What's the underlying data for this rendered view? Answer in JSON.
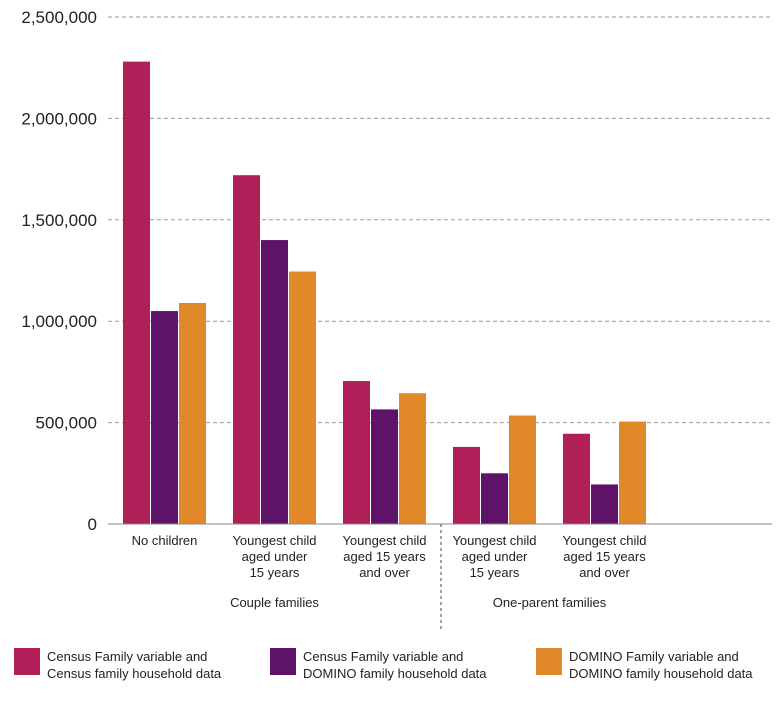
{
  "chart_data": {
    "type": "bar",
    "categories": [
      [
        "No children"
      ],
      [
        "Youngest child",
        "aged under",
        "15 years"
      ],
      [
        "Youngest child",
        "aged 15 years",
        "and over"
      ],
      [
        "Youngest child",
        "aged under",
        "15 years"
      ],
      [
        "Youngest child",
        "aged 15 years",
        "and over"
      ]
    ],
    "groups": [
      {
        "label": "Couple families",
        "categories": [
          0,
          1,
          2
        ]
      },
      {
        "label": "One-parent families",
        "categories": [
          3,
          4
        ]
      }
    ],
    "series": [
      {
        "name": [
          "Census Family variable and",
          "Census family household data"
        ],
        "color": "#b01f58",
        "values": [
          2280000,
          1720000,
          705000,
          380000,
          445000
        ]
      },
      {
        "name": [
          "Census Family variable and",
          "DOMINO family household data"
        ],
        "color": "#5e1268",
        "values": [
          1050000,
          1400000,
          565000,
          250000,
          195000
        ]
      },
      {
        "name": [
          "DOMINO Family variable and",
          "DOMINO family household data"
        ],
        "color": "#e0882a",
        "values": [
          1090000,
          1245000,
          645000,
          535000,
          505000
        ]
      }
    ],
    "y_ticks": [
      "0",
      "500,000",
      "1,000,000",
      "1,500,000",
      "2,000,000",
      "2,500,000"
    ],
    "y_tick_values": [
      0,
      500000,
      1000000,
      1500000,
      2000000,
      2500000
    ],
    "ylim": [
      0,
      2500000
    ],
    "grid": true,
    "legend_position": "bottom"
  }
}
